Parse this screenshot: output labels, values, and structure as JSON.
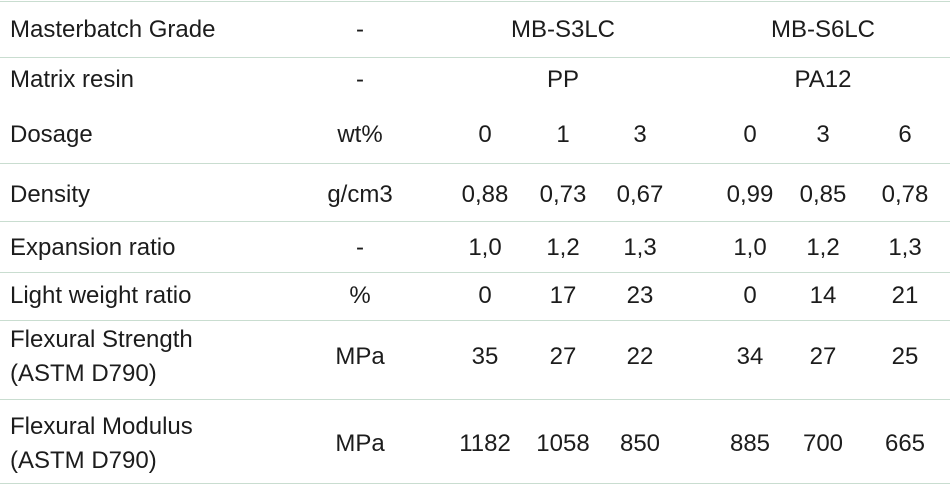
{
  "table": {
    "rows": [
      [
        "Masterbatch Grade",
        "-",
        "MB-S3LC",
        "MB-S6LC"
      ],
      [
        "Matrix resin",
        "-",
        "PP",
        "PA12"
      ],
      [
        "Dosage",
        "wt%",
        "0",
        "1",
        "3",
        "0",
        "3",
        "6"
      ],
      [
        "Density",
        "g/cm3",
        "0,88",
        "0,73",
        "0,67",
        "0,99",
        "0,85",
        "0,78"
      ],
      [
        "Expansion ratio",
        "-",
        "1,0",
        "1,2",
        "1,3",
        "1,0",
        "1,2",
        "1,3"
      ],
      [
        "Light weight ratio",
        "%",
        "0",
        "17",
        "23",
        "0",
        "14",
        "21"
      ],
      [
        "Flexural Strength (ASTM D790)",
        "MPa",
        "35",
        "27",
        "22",
        "34",
        "27",
        "25"
      ],
      [
        "Flexural Modulus (ASTM D790)",
        "MPa",
        "1182",
        "1058",
        "850",
        "885",
        "700",
        "665"
      ]
    ]
  }
}
